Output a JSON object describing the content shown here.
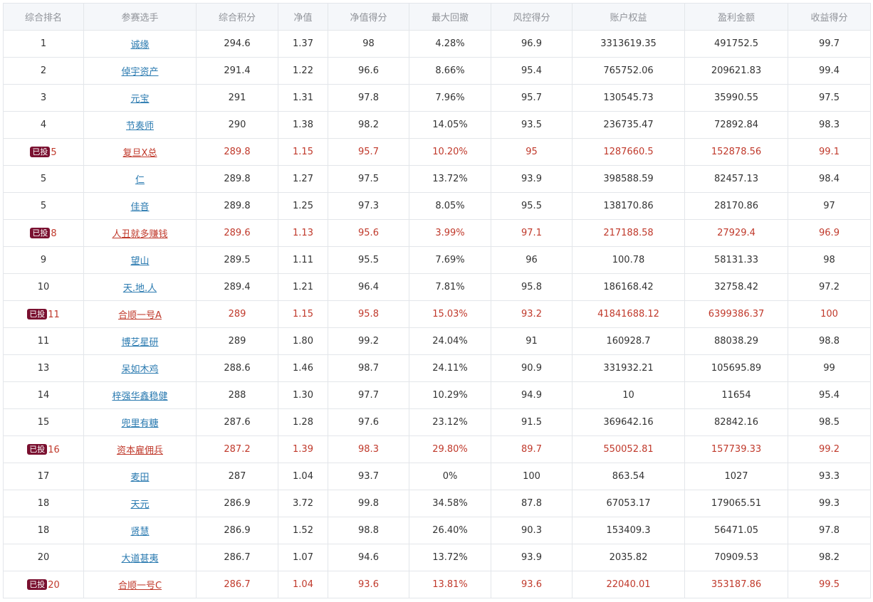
{
  "table": {
    "columns": [
      "综合排名",
      "参赛选手",
      "综合积分",
      "净值",
      "净值得分",
      "最大回撤",
      "风控得分",
      "账户权益",
      "盈利金额",
      "收益得分"
    ],
    "badge_label": "已投",
    "rows": [
      {
        "rank": "1",
        "invested": false,
        "player": "诚缘",
        "score": "294.6",
        "nav": "1.37",
        "nav_score": "98",
        "drawdown": "4.28%",
        "risk_score": "96.9",
        "equity": "3313619.35",
        "profit": "491752.5",
        "return_score": "99.7"
      },
      {
        "rank": "2",
        "invested": false,
        "player": "倬宇资产",
        "score": "291.4",
        "nav": "1.22",
        "nav_score": "96.6",
        "drawdown": "8.66%",
        "risk_score": "95.4",
        "equity": "765752.06",
        "profit": "209621.83",
        "return_score": "99.4"
      },
      {
        "rank": "3",
        "invested": false,
        "player": "元宝",
        "score": "291",
        "nav": "1.31",
        "nav_score": "97.8",
        "drawdown": "7.96%",
        "risk_score": "95.7",
        "equity": "130545.73",
        "profit": "35990.55",
        "return_score": "97.5"
      },
      {
        "rank": "4",
        "invested": false,
        "player": "节奏师",
        "score": "290",
        "nav": "1.38",
        "nav_score": "98.2",
        "drawdown": "14.05%",
        "risk_score": "93.5",
        "equity": "236735.47",
        "profit": "72892.84",
        "return_score": "98.3"
      },
      {
        "rank": "5",
        "invested": true,
        "player": "复旦X总",
        "score": "289.8",
        "nav": "1.15",
        "nav_score": "95.7",
        "drawdown": "10.20%",
        "risk_score": "95",
        "equity": "1287660.5",
        "profit": "152878.56",
        "return_score": "99.1"
      },
      {
        "rank": "5",
        "invested": false,
        "player": "仁",
        "score": "289.8",
        "nav": "1.27",
        "nav_score": "97.5",
        "drawdown": "13.72%",
        "risk_score": "93.9",
        "equity": "398588.59",
        "profit": "82457.13",
        "return_score": "98.4"
      },
      {
        "rank": "5",
        "invested": false,
        "player": "佳音",
        "score": "289.8",
        "nav": "1.25",
        "nav_score": "97.3",
        "drawdown": "8.05%",
        "risk_score": "95.5",
        "equity": "138170.86",
        "profit": "28170.86",
        "return_score": "97"
      },
      {
        "rank": "8",
        "invested": true,
        "player": "人丑就多赚钱",
        "score": "289.6",
        "nav": "1.13",
        "nav_score": "95.6",
        "drawdown": "3.99%",
        "risk_score": "97.1",
        "equity": "217188.58",
        "profit": "27929.4",
        "return_score": "96.9"
      },
      {
        "rank": "9",
        "invested": false,
        "player": "望山",
        "score": "289.5",
        "nav": "1.11",
        "nav_score": "95.5",
        "drawdown": "7.69%",
        "risk_score": "96",
        "equity": "100.78",
        "profit": "58131.33",
        "return_score": "98"
      },
      {
        "rank": "10",
        "invested": false,
        "player": "天.地.人",
        "score": "289.4",
        "nav": "1.21",
        "nav_score": "96.4",
        "drawdown": "7.81%",
        "risk_score": "95.8",
        "equity": "186168.42",
        "profit": "32758.42",
        "return_score": "97.2"
      },
      {
        "rank": "11",
        "invested": true,
        "player": "合顺一号A",
        "score": "289",
        "nav": "1.15",
        "nav_score": "95.8",
        "drawdown": "15.03%",
        "risk_score": "93.2",
        "equity": "41841688.12",
        "profit": "6399386.37",
        "return_score": "100"
      },
      {
        "rank": "11",
        "invested": false,
        "player": "博艺星研",
        "score": "289",
        "nav": "1.80",
        "nav_score": "99.2",
        "drawdown": "24.04%",
        "risk_score": "91",
        "equity": "160928.7",
        "profit": "88038.29",
        "return_score": "98.8"
      },
      {
        "rank": "13",
        "invested": false,
        "player": "呆如木鸡",
        "score": "288.6",
        "nav": "1.46",
        "nav_score": "98.7",
        "drawdown": "24.11%",
        "risk_score": "90.9",
        "equity": "331932.21",
        "profit": "105695.89",
        "return_score": "99"
      },
      {
        "rank": "14",
        "invested": false,
        "player": "梓强华鑫稳健",
        "score": "288",
        "nav": "1.30",
        "nav_score": "97.7",
        "drawdown": "10.29%",
        "risk_score": "94.9",
        "equity": "10",
        "profit": "11654",
        "return_score": "95.4"
      },
      {
        "rank": "15",
        "invested": false,
        "player": "兜里有糖",
        "score": "287.6",
        "nav": "1.28",
        "nav_score": "97.6",
        "drawdown": "23.12%",
        "risk_score": "91.5",
        "equity": "369642.16",
        "profit": "82842.16",
        "return_score": "98.5"
      },
      {
        "rank": "16",
        "invested": true,
        "player": "资本雇佣兵",
        "score": "287.2",
        "nav": "1.39",
        "nav_score": "98.3",
        "drawdown": "29.80%",
        "risk_score": "89.7",
        "equity": "550052.81",
        "profit": "157739.33",
        "return_score": "99.2"
      },
      {
        "rank": "17",
        "invested": false,
        "player": "麦田",
        "score": "287",
        "nav": "1.04",
        "nav_score": "93.7",
        "drawdown": "0%",
        "risk_score": "100",
        "equity": "863.54",
        "profit": "1027",
        "return_score": "93.3"
      },
      {
        "rank": "18",
        "invested": false,
        "player": "天元",
        "score": "286.9",
        "nav": "3.72",
        "nav_score": "99.8",
        "drawdown": "34.58%",
        "risk_score": "87.8",
        "equity": "67053.17",
        "profit": "179065.51",
        "return_score": "99.3"
      },
      {
        "rank": "18",
        "invested": false,
        "player": "贤慧",
        "score": "286.9",
        "nav": "1.52",
        "nav_score": "98.8",
        "drawdown": "26.40%",
        "risk_score": "90.3",
        "equity": "153409.3",
        "profit": "56471.05",
        "return_score": "97.8"
      },
      {
        "rank": "20",
        "invested": false,
        "player": "大道甚夷",
        "score": "286.7",
        "nav": "1.07",
        "nav_score": "94.6",
        "drawdown": "13.72%",
        "risk_score": "93.9",
        "equity": "2035.82",
        "profit": "70909.53",
        "return_score": "98.2"
      },
      {
        "rank": "20",
        "invested": true,
        "player": "合顺一号C",
        "score": "286.7",
        "nav": "1.04",
        "nav_score": "93.6",
        "drawdown": "13.81%",
        "risk_score": "93.6",
        "equity": "22040.01",
        "profit": "353187.86",
        "return_score": "99.5"
      }
    ]
  },
  "colors": {
    "header_bg": "#f5f7fa",
    "header_text": "#909399",
    "link": "#2a7ab0",
    "invested_text": "#c0392b",
    "badge_bg": "#7a1030",
    "border": "#e3e6ea"
  }
}
